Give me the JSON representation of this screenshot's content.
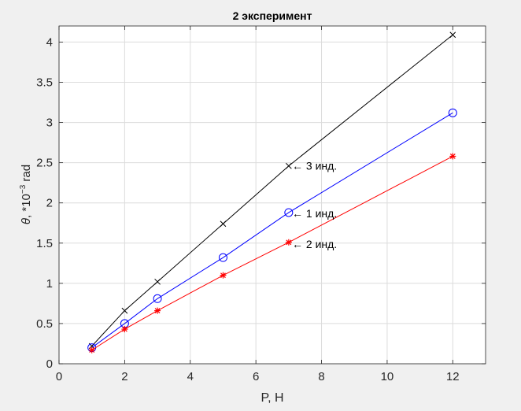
{
  "chart_data": {
    "type": "line",
    "title": "2 эксперимент",
    "xlabel": "P, H",
    "ylabel": {
      "symbol": "θ",
      "prefix": ", *10",
      "exponent": "−3",
      "suffix": " rad"
    },
    "xlim": [
      0,
      13
    ],
    "ylim": [
      0,
      4.2
    ],
    "x_ticks": [
      0,
      2,
      4,
      6,
      8,
      10,
      12
    ],
    "y_ticks": [
      0,
      0.5,
      1,
      1.5,
      2,
      2.5,
      3,
      3.5,
      4
    ],
    "grid": true,
    "x": [
      1,
      2,
      3,
      5,
      7,
      12
    ],
    "series": [
      {
        "values": [
          0.22,
          0.66,
          1.02,
          1.74,
          2.46,
          4.09
        ],
        "color": "#000000",
        "marker": "x"
      },
      {
        "values": [
          0.2,
          0.5,
          0.81,
          1.32,
          1.88,
          3.12
        ],
        "color": "#0000ff",
        "marker": "o"
      },
      {
        "values": [
          0.17,
          0.43,
          0.66,
          1.1,
          1.51,
          2.58
        ],
        "color": "#ff0000",
        "marker": "*"
      }
    ],
    "annotations": [
      {
        "text": "←  3 инд.",
        "x": 7.1,
        "y": 2.46
      },
      {
        "text": "←  1 инд.",
        "x": 7.1,
        "y": 1.87
      },
      {
        "text": "←  2 инд.",
        "x": 7.1,
        "y": 1.49
      }
    ]
  }
}
